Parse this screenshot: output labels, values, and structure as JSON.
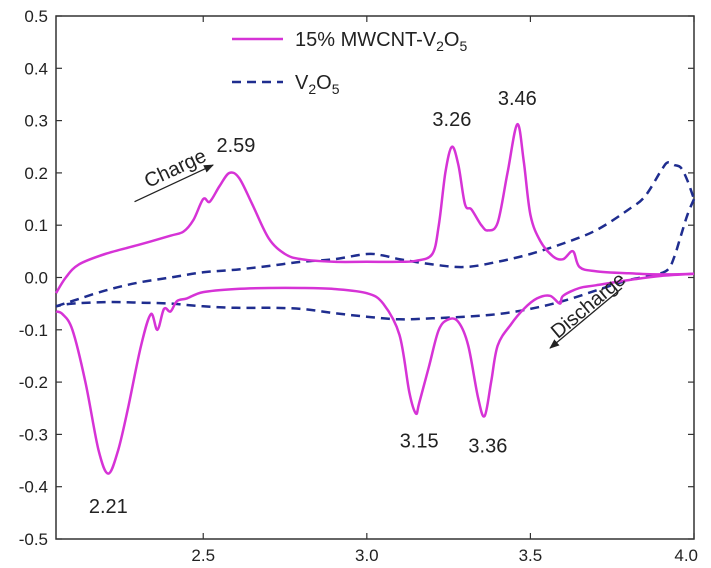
{
  "chart_data": {
    "type": "line",
    "title": "",
    "xlabel": "",
    "ylabel": "",
    "xlim": [
      2.05,
      4.0
    ],
    "ylim": [
      -0.5,
      0.5
    ],
    "x_ticks": [
      "2.5",
      "3.0",
      "3.5",
      "4.0"
    ],
    "x_tick_values": [
      2.5,
      3.0,
      3.5,
      4.0
    ],
    "y_ticks": [
      "0.5",
      "0.4",
      "0.3",
      "0.2",
      "0.1",
      "0.0",
      "-0.1",
      "-0.2",
      "-0.3",
      "-0.4",
      "-0.5"
    ],
    "y_tick_values": [
      0.5,
      0.4,
      0.3,
      0.2,
      0.1,
      0.0,
      -0.1,
      -0.2,
      -0.3,
      -0.4,
      -0.5
    ],
    "grid": false,
    "legend_position": "top-center",
    "series": [
      {
        "name": "15% MWCNT-V2O5",
        "legend_parts": {
          "pre": "15% MWCNT-V",
          "sub1": "2",
          "mid": "O",
          "sub2": "5"
        },
        "color": "#d633d6",
        "style": "solid",
        "charge": [
          [
            2.05,
            -0.03
          ],
          [
            2.08,
            0.0
          ],
          [
            2.12,
            0.025
          ],
          [
            2.2,
            0.045
          ],
          [
            2.3,
            0.062
          ],
          [
            2.4,
            0.08
          ],
          [
            2.44,
            0.088
          ],
          [
            2.47,
            0.11
          ],
          [
            2.5,
            0.15
          ],
          [
            2.52,
            0.145
          ],
          [
            2.55,
            0.175
          ],
          [
            2.58,
            0.2
          ],
          [
            2.61,
            0.19
          ],
          [
            2.65,
            0.14
          ],
          [
            2.7,
            0.075
          ],
          [
            2.75,
            0.045
          ],
          [
            2.8,
            0.035
          ],
          [
            2.9,
            0.03
          ],
          [
            3.0,
            0.03
          ],
          [
            3.1,
            0.03
          ],
          [
            3.15,
            0.032
          ],
          [
            3.2,
            0.045
          ],
          [
            3.22,
            0.1
          ],
          [
            3.24,
            0.2
          ],
          [
            3.26,
            0.25
          ],
          [
            3.28,
            0.215
          ],
          [
            3.3,
            0.14
          ],
          [
            3.32,
            0.13
          ],
          [
            3.35,
            0.1
          ],
          [
            3.37,
            0.09
          ],
          [
            3.4,
            0.105
          ],
          [
            3.43,
            0.2
          ],
          [
            3.46,
            0.293
          ],
          [
            3.48,
            0.22
          ],
          [
            3.5,
            0.12
          ],
          [
            3.53,
            0.07
          ],
          [
            3.57,
            0.04
          ],
          [
            3.6,
            0.035
          ],
          [
            3.63,
            0.05
          ],
          [
            3.65,
            0.02
          ],
          [
            3.7,
            0.012
          ],
          [
            3.8,
            0.008
          ],
          [
            3.9,
            0.006
          ],
          [
            4.0,
            0.007
          ]
        ],
        "discharge": [
          [
            4.0,
            0.007
          ],
          [
            3.9,
            0.003
          ],
          [
            3.8,
            -0.005
          ],
          [
            3.7,
            -0.015
          ],
          [
            3.65,
            -0.02
          ],
          [
            3.6,
            -0.035
          ],
          [
            3.59,
            -0.05
          ],
          [
            3.56,
            -0.035
          ],
          [
            3.52,
            -0.04
          ],
          [
            3.48,
            -0.06
          ],
          [
            3.44,
            -0.09
          ],
          [
            3.4,
            -0.13
          ],
          [
            3.38,
            -0.2
          ],
          [
            3.36,
            -0.265
          ],
          [
            3.34,
            -0.23
          ],
          [
            3.31,
            -0.13
          ],
          [
            3.28,
            -0.085
          ],
          [
            3.25,
            -0.08
          ],
          [
            3.22,
            -0.1
          ],
          [
            3.19,
            -0.17
          ],
          [
            3.16,
            -0.24
          ],
          [
            3.15,
            -0.26
          ],
          [
            3.13,
            -0.22
          ],
          [
            3.1,
            -0.11
          ],
          [
            3.05,
            -0.05
          ],
          [
            3.0,
            -0.03
          ],
          [
            2.9,
            -0.022
          ],
          [
            2.8,
            -0.02
          ],
          [
            2.7,
            -0.02
          ],
          [
            2.6,
            -0.022
          ],
          [
            2.5,
            -0.028
          ],
          [
            2.45,
            -0.04
          ],
          [
            2.42,
            -0.045
          ],
          [
            2.4,
            -0.065
          ],
          [
            2.38,
            -0.06
          ],
          [
            2.36,
            -0.1
          ],
          [
            2.34,
            -0.07
          ],
          [
            2.31,
            -0.13
          ],
          [
            2.27,
            -0.25
          ],
          [
            2.24,
            -0.33
          ],
          [
            2.21,
            -0.375
          ],
          [
            2.18,
            -0.33
          ],
          [
            2.14,
            -0.2
          ],
          [
            2.1,
            -0.1
          ],
          [
            2.07,
            -0.07
          ],
          [
            2.05,
            -0.065
          ]
        ]
      },
      {
        "name": "V2O5",
        "legend_parts": {
          "pre": "V",
          "sub1": "2",
          "mid": "O",
          "sub2": "5"
        },
        "color": "#1f2d8f",
        "style": "dashed",
        "charge": [
          [
            2.05,
            -0.055
          ],
          [
            2.1,
            -0.045
          ],
          [
            2.2,
            -0.025
          ],
          [
            2.3,
            -0.01
          ],
          [
            2.4,
            0.0
          ],
          [
            2.5,
            0.01
          ],
          [
            2.6,
            0.015
          ],
          [
            2.7,
            0.022
          ],
          [
            2.8,
            0.03
          ],
          [
            2.9,
            0.035
          ],
          [
            3.0,
            0.045
          ],
          [
            3.05,
            0.042
          ],
          [
            3.1,
            0.035
          ],
          [
            3.2,
            0.025
          ],
          [
            3.3,
            0.02
          ],
          [
            3.4,
            0.03
          ],
          [
            3.5,
            0.045
          ],
          [
            3.6,
            0.065
          ],
          [
            3.7,
            0.09
          ],
          [
            3.8,
            0.13
          ],
          [
            3.85,
            0.155
          ],
          [
            3.9,
            0.205
          ],
          [
            3.92,
            0.22
          ],
          [
            3.94,
            0.215
          ],
          [
            3.96,
            0.21
          ],
          [
            3.98,
            0.185
          ],
          [
            4.0,
            0.15
          ]
        ],
        "discharge": [
          [
            4.0,
            0.15
          ],
          [
            3.98,
            0.12
          ],
          [
            3.96,
            0.08
          ],
          [
            3.94,
            0.04
          ],
          [
            3.92,
            0.015
          ],
          [
            3.88,
            0.005
          ],
          [
            3.8,
            -0.005
          ],
          [
            3.7,
            -0.025
          ],
          [
            3.6,
            -0.045
          ],
          [
            3.5,
            -0.06
          ],
          [
            3.4,
            -0.07
          ],
          [
            3.3,
            -0.075
          ],
          [
            3.2,
            -0.078
          ],
          [
            3.1,
            -0.08
          ],
          [
            3.0,
            -0.075
          ],
          [
            2.9,
            -0.068
          ],
          [
            2.8,
            -0.06
          ],
          [
            2.7,
            -0.058
          ],
          [
            2.6,
            -0.058
          ],
          [
            2.5,
            -0.055
          ],
          [
            2.4,
            -0.05
          ],
          [
            2.3,
            -0.048
          ],
          [
            2.2,
            -0.047
          ],
          [
            2.1,
            -0.05
          ],
          [
            2.05,
            -0.055
          ]
        ]
      }
    ],
    "peak_labels": [
      {
        "text": "2.59",
        "x": 2.6,
        "y": 0.24
      },
      {
        "text": "3.26",
        "x": 3.26,
        "y": 0.29
      },
      {
        "text": "3.46",
        "x": 3.46,
        "y": 0.33
      },
      {
        "text": "3.15",
        "x": 3.16,
        "y": -0.325
      },
      {
        "text": "3.36",
        "x": 3.37,
        "y": -0.335
      },
      {
        "text": "2.21",
        "x": 2.21,
        "y": -0.45
      }
    ],
    "annotations": [
      {
        "text": "Charge",
        "x1": 2.29,
        "y1": 0.145,
        "x2": 2.53,
        "y2": 0.215
      },
      {
        "text": "Discharge",
        "x1": 3.78,
        "y1": -0.02,
        "x2": 3.56,
        "y2": -0.135
      }
    ]
  }
}
